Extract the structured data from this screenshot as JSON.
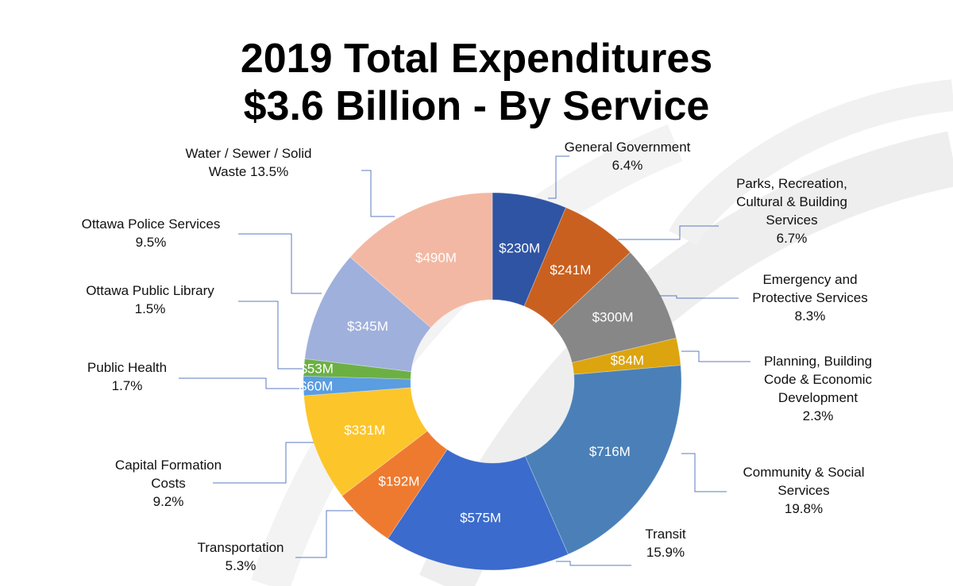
{
  "title_line1": "2019 Total Expenditures",
  "title_line2": "$3.6 Billion - By Service",
  "chart_data": {
    "type": "pie",
    "variant": "donut",
    "title": "2019 Total Expenditures $3.6 Billion - By Service",
    "legend": "none (callout labels)",
    "slices": [
      {
        "name": "General Government",
        "value": 230,
        "value_label": "$230M",
        "percent_label": "6.4%",
        "color": "#2f54a3",
        "label_lines": [
          "General Government",
          "6.4%"
        ]
      },
      {
        "name": "Parks, Recreation, Cultural & Building Services",
        "value": 241,
        "value_label": "$241M",
        "percent_label": "6.7%",
        "color": "#c9601f",
        "label_lines": [
          "Parks, Recreation,",
          "Cultural & Building",
          "Services",
          "6.7%"
        ]
      },
      {
        "name": "Emergency and Protective Services",
        "value": 300,
        "value_label": "$300M",
        "percent_label": "8.3%",
        "color": "#878787",
        "label_lines": [
          "Emergency and",
          "Protective Services",
          "8.3%"
        ]
      },
      {
        "name": "Planning, Building Code & Economic Development",
        "value": 84,
        "value_label": "$84M",
        "percent_label": "2.3%",
        "color": "#dca40e",
        "label_lines": [
          "Planning, Building",
          "Code & Economic",
          "Development",
          "2.3%"
        ]
      },
      {
        "name": "Community & Social Services",
        "value": 716,
        "value_label": "$716M",
        "percent_label": "19.8%",
        "color": "#4a80b7",
        "label_lines": [
          "Community & Social",
          "Services",
          "19.8%"
        ]
      },
      {
        "name": "Transit",
        "value": 575,
        "value_label": "$575M",
        "percent_label": "15.9%",
        "color": "#3b6bcc",
        "label_lines": [
          "Transit",
          "15.9%"
        ]
      },
      {
        "name": "Transportation",
        "value": 192,
        "value_label": "$192M",
        "percent_label": "5.3%",
        "color": "#ee7a30",
        "label_lines": [
          "Transportation",
          "5.3%"
        ]
      },
      {
        "name": "Capital Formation Costs",
        "value": 331,
        "value_label": "$331M",
        "percent_label": "9.2%",
        "color": "#fcc52a",
        "label_lines": [
          "Capital Formation",
          "Costs",
          "9.2%"
        ]
      },
      {
        "name": "Public Health",
        "value": 60,
        "value_label": "$60M",
        "percent_label": "1.7%",
        "color": "#5a9de0",
        "label_lines": [
          "Public Health",
          "1.7%"
        ]
      },
      {
        "name": "Ottawa Public Library",
        "value": 53,
        "value_label": "$53M",
        "percent_label": "1.5%",
        "color": "#6cb043",
        "label_lines": [
          "Ottawa Public Library",
          "1.5%"
        ]
      },
      {
        "name": "Ottawa Police Services",
        "value": 345,
        "value_label": "$345M",
        "percent_label": "9.5%",
        "color": "#9fb0dc",
        "label_lines": [
          "Ottawa Police Services",
          "9.5%"
        ]
      },
      {
        "name": "Water / Sewer / Solid Waste",
        "value": 490,
        "value_label": "$490M",
        "percent_label": "13.5%",
        "color": "#f3b8a3",
        "label_lines": [
          "Water / Sewer / Solid",
          "Waste 13.5%"
        ]
      }
    ]
  }
}
